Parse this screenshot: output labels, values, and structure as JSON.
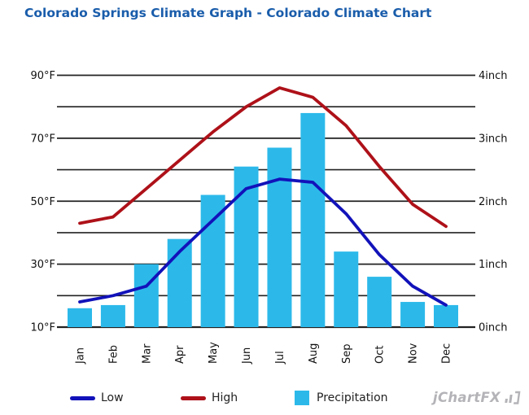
{
  "title": {
    "text": "Colorado Springs Climate Graph - Colorado Climate Chart"
  },
  "style": {
    "background": "#ffffff",
    "title_color": "#1a5dab",
    "grid_color": "#222222",
    "axis_text_color": "#111111",
    "legend_text_color": "#222222",
    "watermark_color": "#b4b4b8"
  },
  "axes": {
    "left": {
      "unit": "°F",
      "ticks": [
        {
          "value": 90,
          "label": "90°F"
        },
        {
          "value": 70,
          "label": "70°F"
        },
        {
          "value": 50,
          "label": "50°F"
        },
        {
          "value": 30,
          "label": "30°F"
        },
        {
          "value": 10,
          "label": "10°F"
        }
      ]
    },
    "right": {
      "unit": "inch",
      "ticks": [
        {
          "value": 4,
          "label": "4inch"
        },
        {
          "value": 3,
          "label": "3inch"
        },
        {
          "value": 2,
          "label": "2inch"
        },
        {
          "value": 1,
          "label": "1inch"
        },
        {
          "value": 0,
          "label": "0inch"
        }
      ]
    }
  },
  "chart_data": {
    "type": "bar",
    "title": "Colorado Springs Climate Graph - Colorado Climate Chart",
    "categories": [
      "Jan",
      "Feb",
      "Mar",
      "Apr",
      "May",
      "Jun",
      "Jul",
      "Aug",
      "Sep",
      "Oct",
      "Nov",
      "Dec"
    ],
    "series": [
      {
        "name": "Low",
        "type": "line",
        "axis": "temperature_f",
        "color": "#1212ba",
        "values": [
          18,
          20,
          23,
          34,
          44,
          54,
          57,
          56,
          46,
          33,
          23,
          17
        ]
      },
      {
        "name": "High",
        "type": "line",
        "axis": "temperature_f",
        "color": "#ae1119",
        "values": [
          43,
          45,
          54,
          63,
          72,
          80,
          86,
          83,
          74,
          61,
          49,
          42
        ]
      },
      {
        "name": "Precipitation",
        "type": "bar",
        "axis": "precipitation_inch",
        "color": "#2cb9ea",
        "values": [
          0.3,
          0.35,
          1.0,
          1.4,
          2.1,
          2.55,
          2.85,
          3.4,
          1.2,
          0.8,
          0.4,
          0.35
        ]
      }
    ],
    "y_left": {
      "label": "°F",
      "min": 10,
      "max": 90,
      "grid_step": 10
    },
    "y_right": {
      "label": "inch",
      "min": 0,
      "max": 4,
      "grid_step": 0.5
    },
    "grid": true,
    "legend_position": "bottom"
  },
  "watermark": {
    "label": "jChartFX"
  }
}
